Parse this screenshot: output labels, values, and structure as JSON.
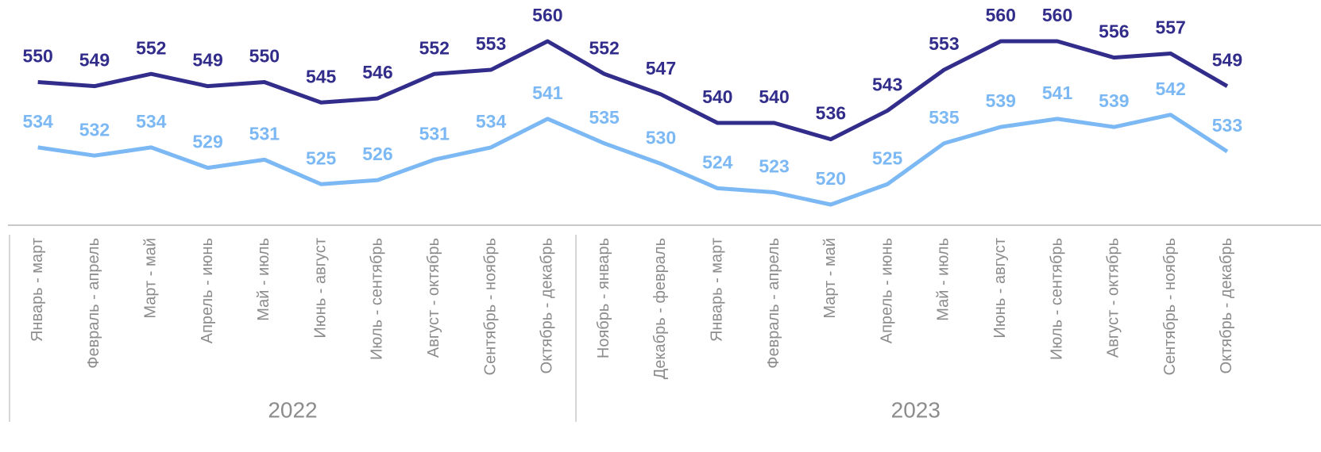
{
  "chart_data": {
    "type": "line",
    "groups": [
      {
        "label": "2022",
        "categories": [
          "Январь - март",
          "Февраль - апрель",
          "Март - май",
          "Апрель - июнь",
          "Май - июль",
          "Июнь - август",
          "Июль - сентябрь",
          "Август - октябрь",
          "Сентябрь - ноябрь",
          "Октябрь - декабрь"
        ]
      },
      {
        "label": "2023",
        "categories": [
          "Ноябрь - январь",
          "Декабрь - февраль",
          "Январь - март",
          "Февраль - апрель",
          "Март - май",
          "Апрель - июнь",
          "Май - июль",
          "Июнь - август",
          "Июль - сентябрь",
          "Август - октябрь",
          "Сентябрь - ноябрь",
          "Октябрь - декабрь"
        ]
      }
    ],
    "series": [
      {
        "color": "#322d8a",
        "values": [
          550,
          549,
          552,
          549,
          550,
          545,
          546,
          552,
          553,
          560,
          552,
          547,
          540,
          540,
          536,
          543,
          553,
          560,
          560,
          556,
          557,
          549
        ]
      },
      {
        "color": "#7cb9f4",
        "values": [
          534,
          532,
          534,
          529,
          531,
          525,
          526,
          531,
          534,
          541,
          535,
          530,
          524,
          523,
          520,
          525,
          535,
          539,
          541,
          539,
          542,
          533
        ]
      }
    ]
  }
}
